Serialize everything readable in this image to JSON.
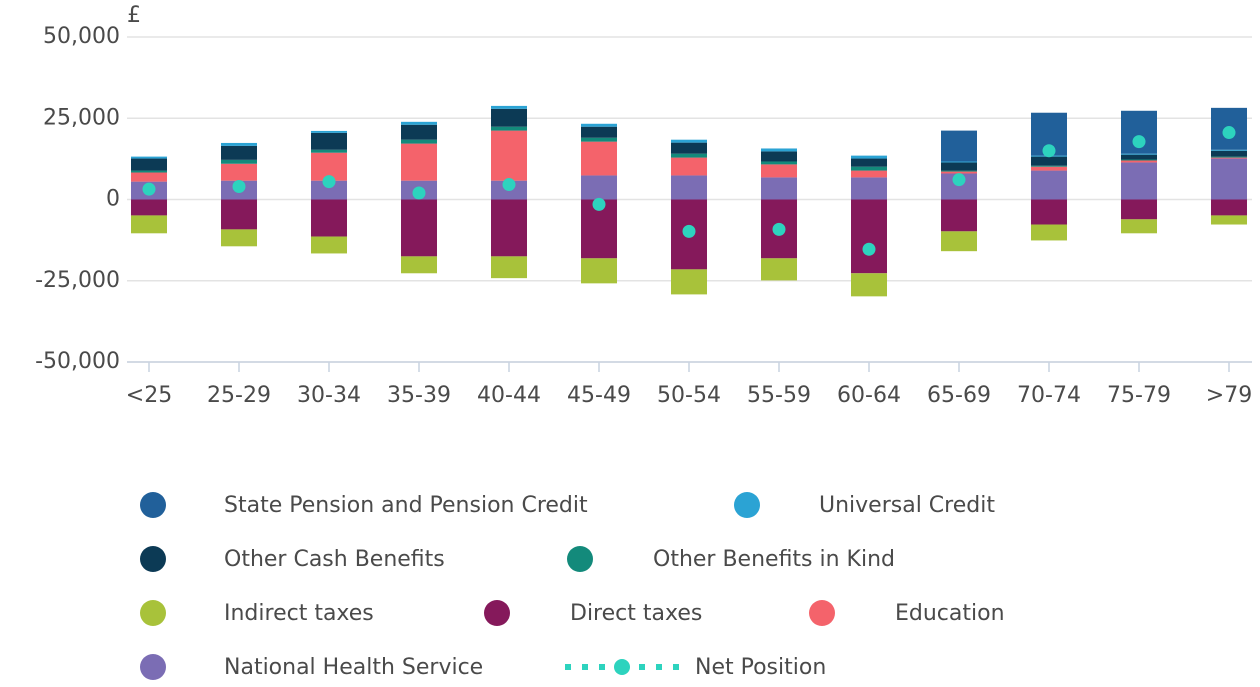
{
  "chart_data": {
    "type": "bar",
    "stacked": true,
    "y_label": "£",
    "categories": [
      "<25",
      "25-29",
      "30-34",
      "35-39",
      "40-44",
      "45-49",
      "50-54",
      "55-59",
      "60-64",
      "65-69",
      "70-74",
      "75-79",
      ">79"
    ],
    "ylim": [
      -50000,
      50000
    ],
    "yticks": [
      {
        "value": 50000,
        "label": "50,000"
      },
      {
        "value": 25000,
        "label": "25,000"
      },
      0,
      {
        "value": -25000,
        "label": "-25,000"
      },
      {
        "value": -50000,
        "label": "-50,000"
      }
    ],
    "grid": true,
    "legend": "bottom",
    "series": [
      {
        "name": "State Pension and Pension Credit",
        "color": "#21609a",
        "values": [
          0,
          0,
          0,
          0,
          0,
          0,
          0,
          0,
          0,
          9500,
          13200,
          13200,
          12900
        ]
      },
      {
        "name": "Universal Credit",
        "color": "#2ba3d4",
        "values": [
          600,
          900,
          600,
          900,
          900,
          900,
          900,
          900,
          900,
          300,
          300,
          300,
          300
        ]
      },
      {
        "name": "Other Cash Benefits",
        "color": "#0c3a55",
        "values": [
          3700,
          4300,
          5200,
          4600,
          5500,
          3400,
          3400,
          3100,
          2500,
          2500,
          2800,
          1500,
          1800
        ]
      },
      {
        "name": "Other Benefits in Kind",
        "color": "#138a7b",
        "values": [
          600,
          1200,
          900,
          1200,
          1200,
          1200,
          1200,
          900,
          1200,
          300,
          300,
          300,
          300
        ]
      },
      {
        "name": "Indirect taxes",
        "color": "#a8c23a",
        "values": [
          -5500,
          -5200,
          -5200,
          -5200,
          -6700,
          -7700,
          -7700,
          -6800,
          -7100,
          -6100,
          -4900,
          -4300,
          -2800
        ]
      },
      {
        "name": "Direct taxes",
        "color": "#85195b",
        "values": [
          -4900,
          -9200,
          -11400,
          -17500,
          -17500,
          -18100,
          -21500,
          -18100,
          -22700,
          -9800,
          -7700,
          -6100,
          -4900
        ]
      },
      {
        "name": "Education",
        "color": "#f4636b",
        "values": [
          2800,
          5200,
          8600,
          11400,
          15400,
          10400,
          5500,
          4000,
          2100,
          600,
          1200,
          600,
          300
        ]
      },
      {
        "name": "National Health Service",
        "color": "#7b6db4",
        "values": [
          5500,
          5800,
          5800,
          5800,
          5800,
          7400,
          7400,
          6800,
          6800,
          8000,
          8900,
          11400,
          12600
        ]
      },
      {
        "name": "Net Position",
        "type": "scatter",
        "color": "#2dd3be",
        "values": [
          3200,
          4000,
          5500,
          2000,
          4600,
          -1500,
          -9800,
          -9200,
          -15300,
          6100,
          15000,
          17800,
          20600
        ]
      }
    ]
  }
}
